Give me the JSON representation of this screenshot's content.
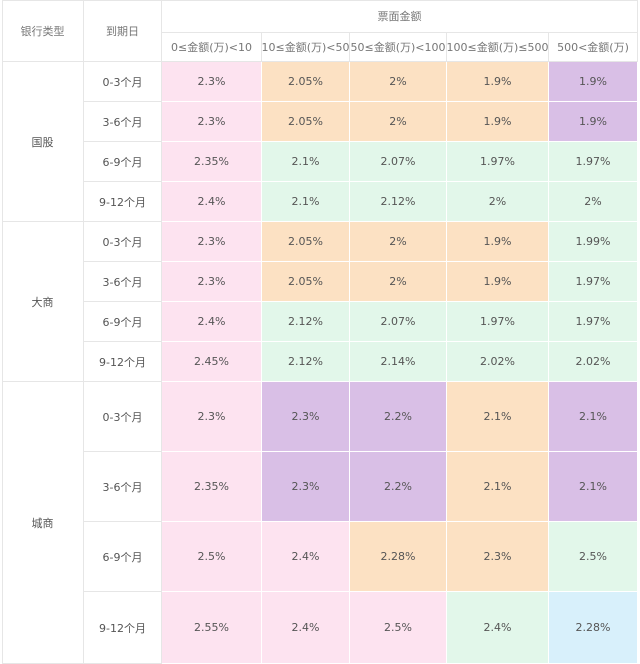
{
  "headers": {
    "bank_type": "银行类型",
    "maturity": "到期日",
    "face_amount": "票面金额",
    "amount_ranges": [
      "0≤金额(万)<10",
      "10≤金额(万)<50",
      "50≤金额(万)<100",
      "100≤金额(万)≤500",
      "500<金额(万)"
    ]
  },
  "colors": {
    "pink": "#fde3f0",
    "orange": "#fce1c3",
    "purple": "#d9bfe6",
    "green": "#e2f7ea",
    "blue": "#d8f0fb"
  },
  "groups": [
    {
      "bank": "国股",
      "rows": [
        {
          "term": "0-3个月",
          "values": [
            "2.3%",
            "2.05%",
            "2%",
            "1.9%",
            "1.9%"
          ],
          "colors": [
            "pink",
            "orange",
            "orange",
            "orange",
            "purple"
          ]
        },
        {
          "term": "3-6个月",
          "values": [
            "2.3%",
            "2.05%",
            "2%",
            "1.9%",
            "1.9%"
          ],
          "colors": [
            "pink",
            "orange",
            "orange",
            "orange",
            "purple"
          ]
        },
        {
          "term": "6-9个月",
          "values": [
            "2.35%",
            "2.1%",
            "2.07%",
            "1.97%",
            "1.97%"
          ],
          "colors": [
            "pink",
            "green",
            "green",
            "green",
            "green"
          ]
        },
        {
          "term": "9-12个月",
          "values": [
            "2.4%",
            "2.1%",
            "2.12%",
            "2%",
            "2%"
          ],
          "colors": [
            "pink",
            "green",
            "green",
            "green",
            "green"
          ]
        }
      ]
    },
    {
      "bank": "大商",
      "rows": [
        {
          "term": "0-3个月",
          "values": [
            "2.3%",
            "2.05%",
            "2%",
            "1.9%",
            "1.99%"
          ],
          "colors": [
            "pink",
            "orange",
            "orange",
            "orange",
            "green"
          ]
        },
        {
          "term": "3-6个月",
          "values": [
            "2.3%",
            "2.05%",
            "2%",
            "1.9%",
            "1.97%"
          ],
          "colors": [
            "pink",
            "orange",
            "orange",
            "orange",
            "green"
          ]
        },
        {
          "term": "6-9个月",
          "values": [
            "2.4%",
            "2.12%",
            "2.07%",
            "1.97%",
            "1.97%"
          ],
          "colors": [
            "pink",
            "green",
            "green",
            "green",
            "green"
          ]
        },
        {
          "term": "9-12个月",
          "values": [
            "2.45%",
            "2.12%",
            "2.14%",
            "2.02%",
            "2.02%"
          ],
          "colors": [
            "pink",
            "green",
            "green",
            "green",
            "green"
          ]
        }
      ]
    },
    {
      "bank": "城商",
      "rows": [
        {
          "term": "0-3个月",
          "values": [
            "2.3%",
            "2.3%",
            "2.2%",
            "2.1%",
            "2.1%"
          ],
          "colors": [
            "pink",
            "purple",
            "purple",
            "orange",
            "purple"
          ]
        },
        {
          "term": "3-6个月",
          "values": [
            "2.35%",
            "2.3%",
            "2.2%",
            "2.1%",
            "2.1%"
          ],
          "colors": [
            "pink",
            "purple",
            "purple",
            "orange",
            "purple"
          ]
        },
        {
          "term": "6-9个月",
          "values": [
            "2.5%",
            "2.4%",
            "2.28%",
            "2.3%",
            "2.5%"
          ],
          "colors": [
            "pink",
            "pink",
            "orange",
            "orange",
            "green"
          ]
        },
        {
          "term": "9-12个月",
          "values": [
            "2.55%",
            "2.4%",
            "2.5%",
            "2.4%",
            "2.28%"
          ],
          "colors": [
            "pink",
            "pink",
            "pink",
            "green",
            "blue"
          ]
        }
      ]
    }
  ]
}
